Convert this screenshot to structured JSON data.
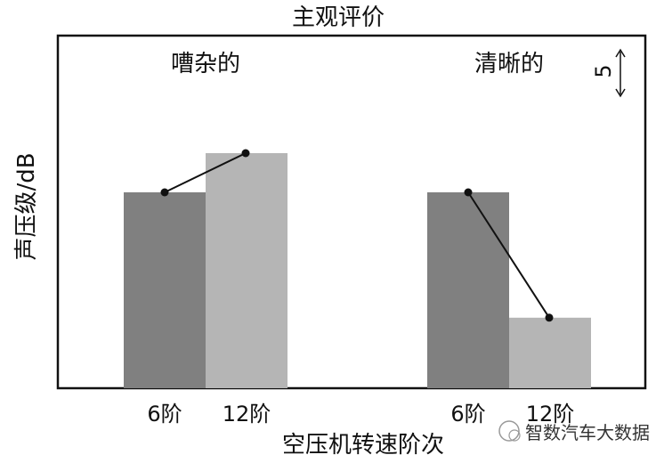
{
  "chart_data": {
    "type": "bar",
    "title": "主观评价",
    "xlabel": "空压机转速阶次",
    "ylabel": "声压级/dB",
    "scale_marker": "5",
    "groups": [
      {
        "name": "嘈杂的",
        "categories": [
          "6阶",
          "12阶"
        ],
        "values": [
          25,
          30
        ],
        "colors": [
          "#808080",
          "#b5b5b5"
        ]
      },
      {
        "name": "清晰的",
        "categories": [
          "6阶",
          "12阶"
        ],
        "values": [
          25,
          9
        ],
        "colors": [
          "#808080",
          "#b5b5b5"
        ]
      }
    ],
    "ylim": [
      0,
      45
    ],
    "grid": false,
    "connector_lines": true
  },
  "watermark": {
    "text": "智数汽车大数据"
  }
}
